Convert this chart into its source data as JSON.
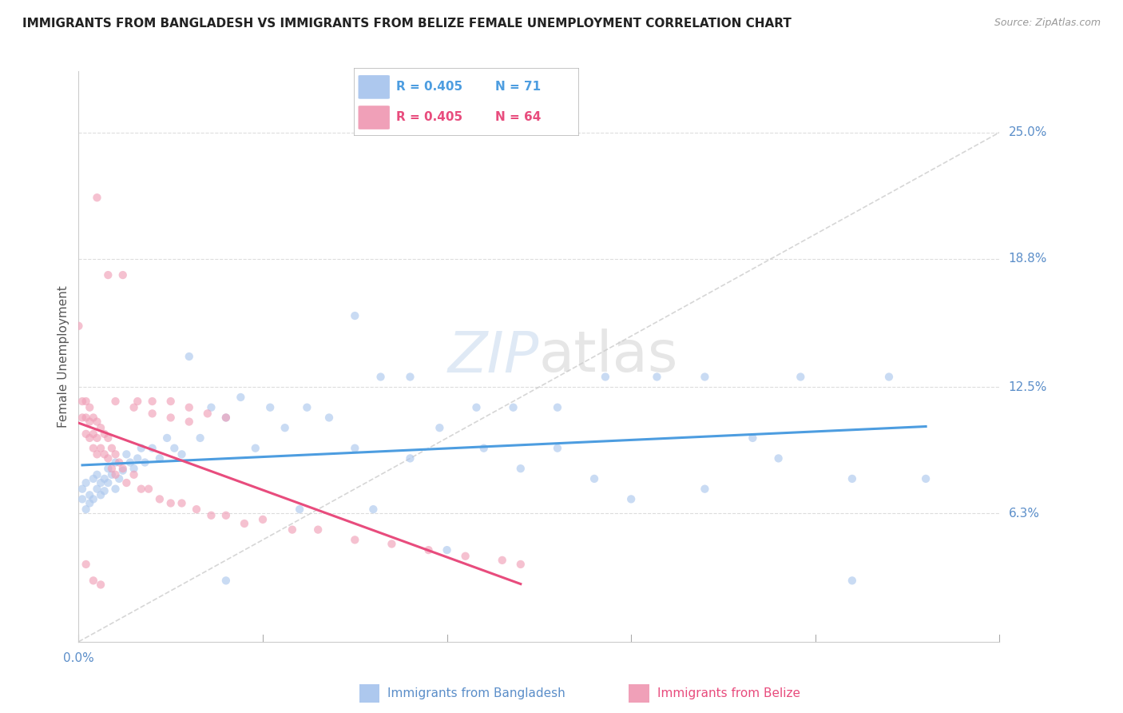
{
  "title": "IMMIGRANTS FROM BANGLADESH VS IMMIGRANTS FROM BELIZE FEMALE UNEMPLOYMENT CORRELATION CHART",
  "source": "Source: ZipAtlas.com",
  "ylabel": "Female Unemployment",
  "ytick_labels": [
    "25.0%",
    "18.8%",
    "12.5%",
    "6.3%"
  ],
  "ytick_values": [
    0.25,
    0.188,
    0.125,
    0.063
  ],
  "xlim": [
    0.0,
    0.25
  ],
  "ylim": [
    0.0,
    0.28
  ],
  "color_bangladesh": "#adc8ee",
  "color_belize": "#f0a0b8",
  "color_bangladesh_line": "#4d9de0",
  "color_belize_line": "#e84c7d",
  "color_diagonal": "#cccccc",
  "color_grid": "#dddddd",
  "color_tick_label": "#5b8ec9",
  "color_title": "#222222",
  "marker_size": 55,
  "marker_alpha": 0.65,
  "bd_slope": 0.18,
  "bd_intercept": 0.075,
  "bz_slope": 0.9,
  "bz_intercept": 0.095,
  "bangladesh_x": [
    0.001,
    0.001,
    0.002,
    0.002,
    0.003,
    0.003,
    0.004,
    0.004,
    0.005,
    0.005,
    0.006,
    0.006,
    0.007,
    0.007,
    0.008,
    0.008,
    0.009,
    0.01,
    0.01,
    0.011,
    0.012,
    0.013,
    0.014,
    0.015,
    0.016,
    0.017,
    0.018,
    0.02,
    0.022,
    0.024,
    0.026,
    0.028,
    0.03,
    0.033,
    0.036,
    0.04,
    0.044,
    0.048,
    0.052,
    0.056,
    0.062,
    0.068,
    0.075,
    0.082,
    0.09,
    0.098,
    0.108,
    0.118,
    0.13,
    0.143,
    0.157,
    0.17,
    0.183,
    0.196,
    0.21,
    0.22,
    0.23,
    0.075,
    0.09,
    0.11,
    0.13,
    0.15,
    0.17,
    0.19,
    0.21,
    0.04,
    0.06,
    0.08,
    0.1,
    0.12,
    0.14
  ],
  "bangladesh_y": [
    0.075,
    0.07,
    0.078,
    0.065,
    0.072,
    0.068,
    0.08,
    0.07,
    0.082,
    0.075,
    0.078,
    0.072,
    0.08,
    0.074,
    0.085,
    0.078,
    0.082,
    0.075,
    0.088,
    0.08,
    0.084,
    0.092,
    0.088,
    0.085,
    0.09,
    0.095,
    0.088,
    0.095,
    0.09,
    0.1,
    0.095,
    0.092,
    0.14,
    0.1,
    0.115,
    0.11,
    0.12,
    0.095,
    0.115,
    0.105,
    0.115,
    0.11,
    0.16,
    0.13,
    0.13,
    0.105,
    0.115,
    0.115,
    0.115,
    0.13,
    0.13,
    0.13,
    0.1,
    0.13,
    0.08,
    0.13,
    0.08,
    0.095,
    0.09,
    0.095,
    0.095,
    0.07,
    0.075,
    0.09,
    0.03,
    0.03,
    0.065,
    0.065,
    0.045,
    0.085,
    0.08
  ],
  "belize_x": [
    0.0,
    0.001,
    0.001,
    0.002,
    0.002,
    0.002,
    0.003,
    0.003,
    0.003,
    0.004,
    0.004,
    0.004,
    0.005,
    0.005,
    0.005,
    0.006,
    0.006,
    0.007,
    0.007,
    0.008,
    0.008,
    0.009,
    0.009,
    0.01,
    0.01,
    0.011,
    0.012,
    0.013,
    0.015,
    0.017,
    0.019,
    0.022,
    0.025,
    0.028,
    0.032,
    0.036,
    0.04,
    0.045,
    0.05,
    0.058,
    0.065,
    0.075,
    0.085,
    0.095,
    0.105,
    0.115,
    0.12,
    0.005,
    0.008,
    0.012,
    0.016,
    0.02,
    0.025,
    0.03,
    0.035,
    0.04,
    0.01,
    0.015,
    0.02,
    0.025,
    0.03,
    0.002,
    0.004,
    0.006
  ],
  "belize_y": [
    0.155,
    0.118,
    0.11,
    0.118,
    0.11,
    0.102,
    0.115,
    0.108,
    0.1,
    0.11,
    0.102,
    0.095,
    0.108,
    0.1,
    0.092,
    0.105,
    0.095,
    0.102,
    0.092,
    0.1,
    0.09,
    0.095,
    0.085,
    0.092,
    0.082,
    0.088,
    0.085,
    0.078,
    0.082,
    0.075,
    0.075,
    0.07,
    0.068,
    0.068,
    0.065,
    0.062,
    0.062,
    0.058,
    0.06,
    0.055,
    0.055,
    0.05,
    0.048,
    0.045,
    0.042,
    0.04,
    0.038,
    0.218,
    0.18,
    0.18,
    0.118,
    0.118,
    0.118,
    0.115,
    0.112,
    0.11,
    0.118,
    0.115,
    0.112,
    0.11,
    0.108,
    0.038,
    0.03,
    0.028
  ]
}
